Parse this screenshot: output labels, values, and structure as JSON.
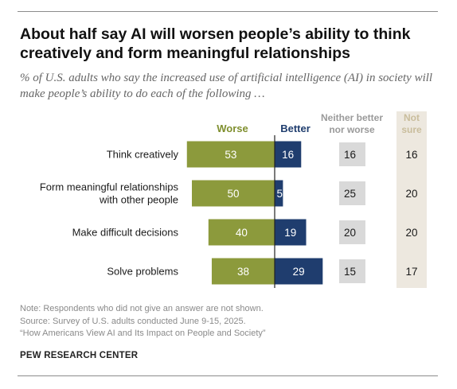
{
  "title": "About half say AI will worsen people’s ability to think creatively and form meaningful relationships",
  "subtitle": "% of U.S. adults who say the increased use of artificial intelligence (AI) in society will make people’s ability to do each of the following …",
  "notes": [
    "Note: Respondents who did not give an answer are not shown.",
    "Source: Survey of U.S. adults conducted June 9-15, 2025.",
    "“How Americans View AI and Its Impact on People and Society”"
  ],
  "brand": "PEW RESEARCH CENTER",
  "colors": {
    "worse": "#8c9a3c",
    "better": "#1f3d6e",
    "neither": "#d9d9d9",
    "not_sure_bg": "#ede8df",
    "worse_label": "#7f8f2e",
    "better_label": "#1f3d6e",
    "neither_label": "#9a9a9a",
    "not_sure_label": "#c9bd9c"
  },
  "chart_data": {
    "type": "bar",
    "categories": [
      [
        "Think creatively"
      ],
      [
        "Form meaningful relationships",
        "with other people"
      ],
      [
        "Make difficult decisions"
      ],
      [
        "Solve problems"
      ]
    ],
    "series": [
      {
        "name": "Worse",
        "values": [
          53,
          50,
          40,
          38
        ]
      },
      {
        "name": "Better",
        "values": [
          16,
          5,
          19,
          29
        ]
      },
      {
        "name": "Neither better nor worse",
        "values": [
          16,
          25,
          20,
          15
        ]
      },
      {
        "name": "Not sure",
        "values": [
          16,
          20,
          20,
          17
        ]
      }
    ],
    "headers": {
      "worse": [
        "Worse"
      ],
      "better": [
        "Better"
      ],
      "neither": [
        "Neither better",
        "nor worse"
      ],
      "not_sure": [
        "Not",
        "sure"
      ]
    }
  }
}
